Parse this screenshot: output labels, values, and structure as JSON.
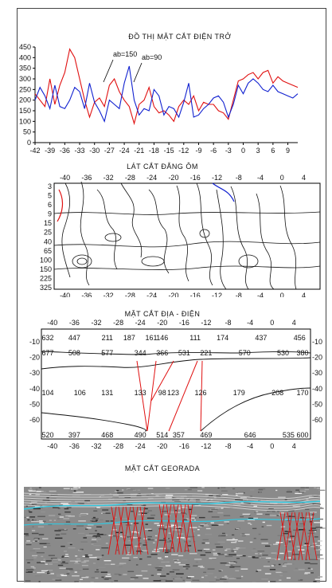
{
  "chart_data": [
    {
      "type": "line",
      "title": "ĐỒ THỊ MẶT CẮT ĐIỆN TRỞ",
      "x": [
        -42,
        -41,
        -40,
        -39,
        -38,
        -37,
        -36,
        -35,
        -34,
        -33,
        -32,
        -31,
        -30,
        -29,
        -28,
        -27,
        -26,
        -25,
        -24,
        -23,
        -22,
        -21,
        -20,
        -19,
        -18,
        -17,
        -16,
        -15,
        -14,
        -13,
        -12,
        -11,
        -10,
        -9,
        -8,
        -7,
        -6,
        -5,
        -4,
        -3,
        -2,
        -1,
        0,
        1,
        2,
        3,
        4,
        5,
        6,
        7,
        8,
        9,
        10,
        11
      ],
      "xticks": [
        -42,
        -39,
        -36,
        -33,
        -30,
        -27,
        -24,
        -21,
        -18,
        -15,
        -12,
        -9,
        -6,
        -3,
        0,
        3,
        6,
        9
      ],
      "yticks": [
        0,
        50,
        100,
        150,
        200,
        250,
        300,
        350,
        400,
        450
      ],
      "ylim": [
        0,
        450
      ],
      "series": [
        {
          "name": "ab=150",
          "color": "#e01010",
          "values": [
            230,
            200,
            170,
            300,
            180,
            270,
            330,
            440,
            400,
            300,
            200,
            120,
            190,
            210,
            170,
            270,
            300,
            240,
            200,
            170,
            90,
            180,
            200,
            260,
            170,
            140,
            150,
            130,
            100,
            170,
            200,
            180,
            220,
            150,
            190,
            180,
            180,
            150,
            140,
            110,
            200,
            290,
            300,
            320,
            330,
            300,
            330,
            340,
            280,
            310,
            290,
            280,
            270,
            260
          ]
        },
        {
          "name": "ab=90",
          "color": "#1020d0",
          "values": [
            200,
            260,
            220,
            160,
            270,
            170,
            160,
            200,
            260,
            240,
            160,
            280,
            190,
            150,
            100,
            200,
            180,
            160,
            280,
            360,
            200,
            130,
            160,
            150,
            250,
            220,
            130,
            170,
            160,
            120,
            190,
            280,
            120,
            130,
            160,
            180,
            210,
            220,
            190,
            120,
            180,
            270,
            230,
            280,
            300,
            280,
            250,
            240,
            270,
            240,
            230,
            220,
            210,
            230
          ]
        }
      ]
    },
    {
      "type": "heatmap",
      "title": "LÁT CẮT ĐẲNG ÔM",
      "xticks": [
        -40,
        -36,
        -32,
        -28,
        -24,
        -20,
        -16,
        -12,
        -8,
        -4,
        0,
        4
      ],
      "yticks": [
        "3",
        "5",
        "6",
        "9",
        "15",
        "25",
        "40",
        "65",
        "100",
        "150",
        "225",
        "325"
      ]
    },
    {
      "type": "table",
      "title": "MẶT CẮT ĐỊA - ĐIỆN",
      "xticks": [
        -40,
        -36,
        -32,
        -28,
        -24,
        -20,
        -16,
        -12,
        -8,
        -4,
        0,
        4
      ],
      "yticks": [
        -10,
        -20,
        -30,
        -40,
        -50,
        -60
      ],
      "values": {
        "row1": [
          "632",
          "447",
          "211",
          "187",
          "161",
          "146",
          "111",
          "174",
          "437",
          "456"
        ],
        "row2": [
          "677",
          "508",
          "577",
          "344",
          "366",
          "531",
          "221",
          "570",
          "530",
          "380"
        ],
        "row3": [
          "104",
          "106",
          "131",
          "133",
          "98",
          "123",
          "126",
          "179",
          "208",
          "170"
        ],
        "row4": [
          "520",
          "397",
          "468",
          "490",
          "514",
          "357",
          "469",
          "646",
          "535",
          "600"
        ]
      }
    },
    {
      "type": "other",
      "title": "MẶT CẮT GEORADA"
    }
  ],
  "colors": {
    "red": "#e01010",
    "blue": "#1020d0",
    "cyan": "#33c8e0"
  }
}
